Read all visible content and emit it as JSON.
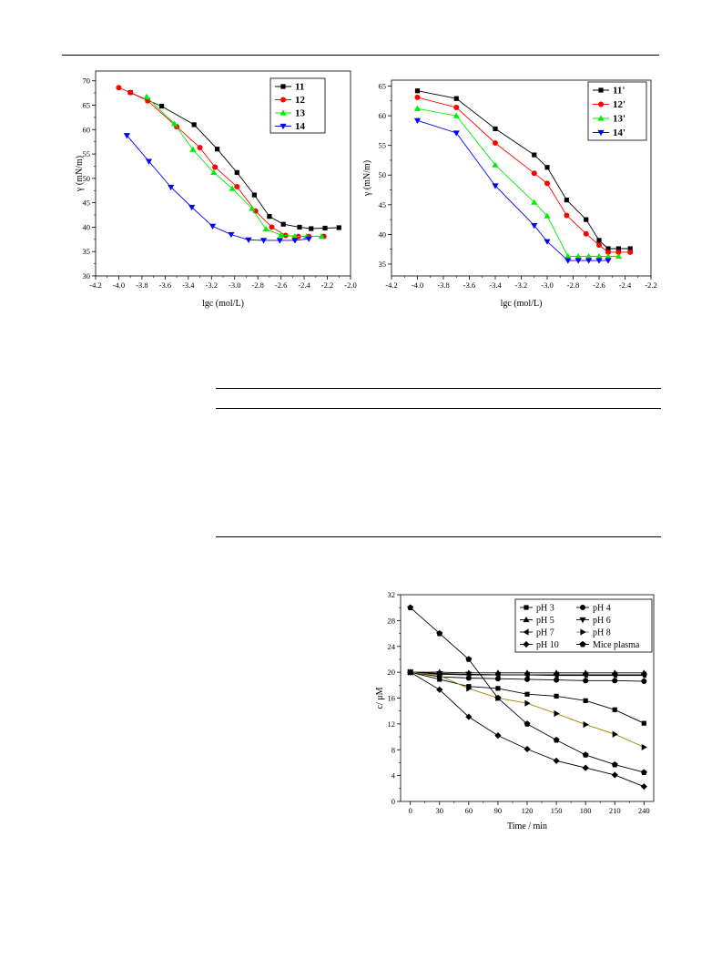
{
  "chart_data": [
    {
      "type": "line",
      "xlabel": "lgc (mol/L)",
      "ylabel": "γ (mN/m)",
      "xlim": [
        -4.2,
        -2.0
      ],
      "ylim": [
        30,
        72
      ],
      "x_ticks": [
        "-4.2",
        "-4.0",
        "-3.8",
        "-3.6",
        "-3.4",
        "-3.2",
        "-3.0",
        "-2.8",
        "-2.6",
        "-2.4",
        "-2.2",
        "-2.0"
      ],
      "y_ticks": [
        "30",
        "35",
        "40",
        "45",
        "50",
        "55",
        "60",
        "65",
        "70"
      ],
      "legend_position": "top-right",
      "series": [
        {
          "name": "11",
          "color": "#000000",
          "marker": "square",
          "x": [
            -3.9,
            -3.75,
            -3.63,
            -3.35,
            -3.15,
            -2.98,
            -2.83,
            -2.7,
            -2.58,
            -2.44,
            -2.34,
            -2.22,
            -2.1
          ],
          "y": [
            67.6,
            66.0,
            64.8,
            61.0,
            56.0,
            51.2,
            46.6,
            42.2,
            40.6,
            40.0,
            39.7,
            39.8,
            39.9
          ]
        },
        {
          "name": "12",
          "color": "#ff0000",
          "marker": "circle",
          "x": [
            -4.0,
            -3.9,
            -3.75,
            -3.5,
            -3.3,
            -3.17,
            -2.98,
            -2.82,
            -2.68,
            -2.56,
            -2.45,
            -2.36,
            -2.23
          ],
          "y": [
            68.6,
            67.6,
            65.9,
            60.6,
            56.3,
            52.3,
            48.3,
            43.3,
            40.0,
            38.3,
            38.1,
            38.1,
            38.1
          ]
        },
        {
          "name": "13",
          "color": "#00ee00",
          "marker": "triangle-up",
          "x": [
            -3.76,
            -3.52,
            -3.36,
            -3.18,
            -3.02,
            -2.85,
            -2.73,
            -2.6,
            -2.48,
            -2.38,
            -2.25
          ],
          "y": [
            66.7,
            61.2,
            55.9,
            51.2,
            47.9,
            43.8,
            39.6,
            38.4,
            38.1,
            38.1,
            38.1
          ]
        },
        {
          "name": "14",
          "color": "#0000ff",
          "marker": "triangle-down",
          "x": [
            -3.93,
            -3.74,
            -3.55,
            -3.37,
            -3.19,
            -3.03,
            -2.88,
            -2.75,
            -2.61,
            -2.48,
            -2.36
          ],
          "y": [
            58.8,
            53.5,
            48.2,
            44.1,
            40.2,
            38.5,
            37.4,
            37.3,
            37.3,
            37.3,
            37.6
          ]
        }
      ]
    },
    {
      "type": "line",
      "xlabel": "lgc (mol/L)",
      "ylabel": "γ (mN/m)",
      "xlim": [
        -4.2,
        -2.2
      ],
      "ylim": [
        33,
        66
      ],
      "x_ticks": [
        "-4.2",
        "-4.0",
        "-3.8",
        "-3.6",
        "-3.4",
        "-3.2",
        "-3.0",
        "-2.8",
        "-2.6",
        "-2.4",
        "-2.2"
      ],
      "y_ticks": [
        "35",
        "40",
        "45",
        "50",
        "55",
        "60",
        "65"
      ],
      "legend_position": "top-right",
      "series": [
        {
          "name": "11'",
          "color": "#000000",
          "marker": "square",
          "x": [
            -4.0,
            -3.7,
            -3.4,
            -3.1,
            -3.0,
            -2.85,
            -2.7,
            -2.6,
            -2.53,
            -2.45,
            -2.36
          ],
          "y": [
            64.2,
            62.9,
            57.8,
            53.4,
            51.3,
            45.8,
            42.5,
            39.0,
            37.6,
            37.6,
            37.6
          ]
        },
        {
          "name": "12'",
          "color": "#ff0000",
          "marker": "circle",
          "x": [
            -4.0,
            -3.7,
            -3.4,
            -3.1,
            -3.0,
            -2.85,
            -2.7,
            -2.6,
            -2.53,
            -2.45,
            -2.36
          ],
          "y": [
            63.1,
            61.4,
            55.4,
            50.3,
            48.6,
            43.2,
            40.1,
            38.2,
            37.0,
            37.0,
            37.0
          ]
        },
        {
          "name": "13'",
          "color": "#00ee00",
          "marker": "triangle-up",
          "x": [
            -4.0,
            -3.7,
            -3.4,
            -3.1,
            -3.0,
            -2.84,
            -2.76,
            -2.68,
            -2.6,
            -2.53,
            -2.45
          ],
          "y": [
            61.2,
            60.0,
            51.7,
            45.4,
            43.1,
            36.3,
            36.3,
            36.3,
            36.3,
            36.3,
            36.3
          ]
        },
        {
          "name": "14'",
          "color": "#0000ff",
          "marker": "triangle-down",
          "x": [
            -4.0,
            -3.7,
            -3.4,
            -3.1,
            -3.0,
            -2.84,
            -2.76,
            -2.68,
            -2.6,
            -2.53
          ],
          "y": [
            59.2,
            57.1,
            48.2,
            41.5,
            38.8,
            35.6,
            35.6,
            35.6,
            35.6,
            35.6
          ]
        }
      ]
    },
    {
      "type": "line",
      "xlabel": "Time / min",
      "ylabel": "c/ μM",
      "xlim": [
        -10,
        250
      ],
      "ylim": [
        0,
        32
      ],
      "x_ticks": [
        "0",
        "30",
        "60",
        "90",
        "120",
        "150",
        "180",
        "210",
        "240"
      ],
      "y_ticks": [
        "0",
        "4",
        "8",
        "12",
        "16",
        "20",
        "24",
        "28",
        "32"
      ],
      "legend_position": "top-right",
      "legend_columns": 2,
      "series": [
        {
          "name": "pH 3",
          "color": "#000000",
          "marker": "square",
          "x": [
            0,
            30,
            60,
            90,
            120,
            150,
            180,
            210,
            240
          ],
          "y": [
            20.0,
            18.9,
            17.8,
            17.5,
            16.6,
            16.3,
            15.6,
            14.2,
            12.1
          ]
        },
        {
          "name": "pH 4",
          "color": "#000000",
          "marker": "circle",
          "x": [
            0,
            30,
            60,
            90,
            120,
            150,
            180,
            210,
            240
          ],
          "y": [
            20.0,
            19.3,
            19.1,
            19.0,
            18.9,
            18.8,
            18.7,
            18.7,
            18.6
          ]
        },
        {
          "name": "pH 5",
          "color": "#000000",
          "marker": "triangle-up",
          "x": [
            0,
            30,
            60,
            90,
            120,
            150,
            180,
            210,
            240
          ],
          "y": [
            20.0,
            20.0,
            19.9,
            19.9,
            19.9,
            19.9,
            19.9,
            19.9,
            19.9
          ]
        },
        {
          "name": "pH 6",
          "color": "#000000",
          "marker": "triangle-down",
          "x": [
            0,
            30,
            60,
            90,
            120,
            150,
            180,
            210,
            240
          ],
          "y": [
            20.0,
            19.8,
            19.7,
            19.6,
            19.6,
            19.5,
            19.5,
            19.5,
            19.5
          ]
        },
        {
          "name": "pH 7",
          "color": "#000000",
          "marker": "triangle-left",
          "x": [
            0,
            30,
            60,
            90,
            120,
            150,
            180,
            210,
            240
          ],
          "y": [
            20.0,
            19.7,
            19.6,
            19.6,
            19.6,
            19.6,
            19.6,
            19.6,
            19.6
          ]
        },
        {
          "name": "pH 8",
          "color": "#000000",
          "marker": "triangle-right",
          "line_color": "#a08000",
          "x": [
            0,
            30,
            60,
            90,
            120,
            150,
            180,
            210,
            240
          ],
          "y": [
            20.0,
            19.5,
            17.5,
            16.0,
            15.2,
            13.6,
            11.9,
            10.4,
            8.4
          ]
        },
        {
          "name": "pH 10",
          "color": "#000000",
          "marker": "diamond",
          "x": [
            0,
            30,
            60,
            90,
            120,
            150,
            180,
            210,
            240
          ],
          "y": [
            20.0,
            17.3,
            13.1,
            10.2,
            8.1,
            6.3,
            5.2,
            4.1,
            2.3
          ]
        },
        {
          "name": "Mice plasma",
          "color": "#000000",
          "marker": "pentagon",
          "x": [
            0,
            30,
            60,
            90,
            120,
            150,
            180,
            210,
            240
          ],
          "y": [
            30.0,
            26.0,
            22.0,
            16.0,
            12.0,
            9.5,
            7.2,
            5.7,
            4.5
          ]
        }
      ]
    }
  ]
}
